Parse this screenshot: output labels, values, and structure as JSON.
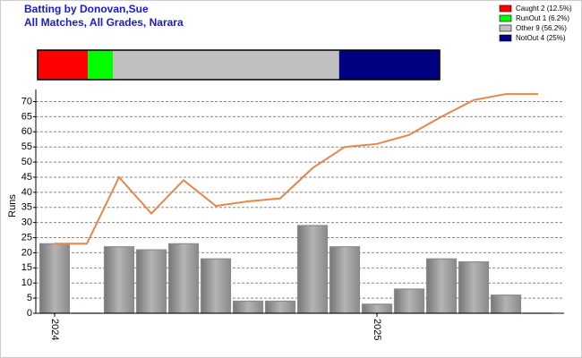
{
  "chart_data": {
    "type": "bar",
    "title": "Batting by Donovan,Sue",
    "subtitle": "All Matches, All Grades, Narara",
    "dismissals": [
      {
        "label": "Caught 2 (12.5%)",
        "value": 2,
        "color": "#ff0000"
      },
      {
        "label": "RunOut 1 (6.2%)",
        "value": 1,
        "color": "#00ff00"
      },
      {
        "label": "Other 9 (56.2%)",
        "value": 9,
        "color": "#c0c0c0"
      },
      {
        "label": "NotOut 4 (25%)",
        "value": 4,
        "color": "#000080"
      }
    ],
    "y_label": "Runs",
    "categories": [
      "2024",
      null,
      null,
      null,
      null,
      null,
      null,
      null,
      null,
      null,
      "2025",
      null,
      null,
      null,
      null,
      null
    ],
    "values": [
      23,
      0,
      22,
      21,
      23,
      18,
      4,
      4,
      29,
      22,
      3,
      8,
      18,
      17,
      6,
      0
    ],
    "bar_colors": [
      "#8c8c8c",
      "#2e8b57",
      "#8c8c8c",
      "#8c8c8c",
      "#8c8c8c",
      "#8c8c8c",
      "#8c8c8c",
      "#8c8c8c",
      "#8c8c8c",
      "#8c8c8c",
      "#8c8c8c",
      "#8c8c8c",
      "#8c8c8c",
      "#8c8c8c",
      "#8c8c8c",
      "#2e8b57"
    ],
    "line": {
      "color": "#e8864a",
      "values": [
        23,
        23,
        45,
        33,
        44,
        35.5,
        37,
        38,
        48,
        55,
        56,
        59,
        65,
        70.5,
        72.5,
        72.5
      ]
    },
    "ylim": [
      0,
      74
    ],
    "yticks": [
      0,
      5,
      10,
      15,
      20,
      25,
      30,
      35,
      40,
      45,
      50,
      55,
      60,
      65,
      70
    ],
    "grid": true
  }
}
